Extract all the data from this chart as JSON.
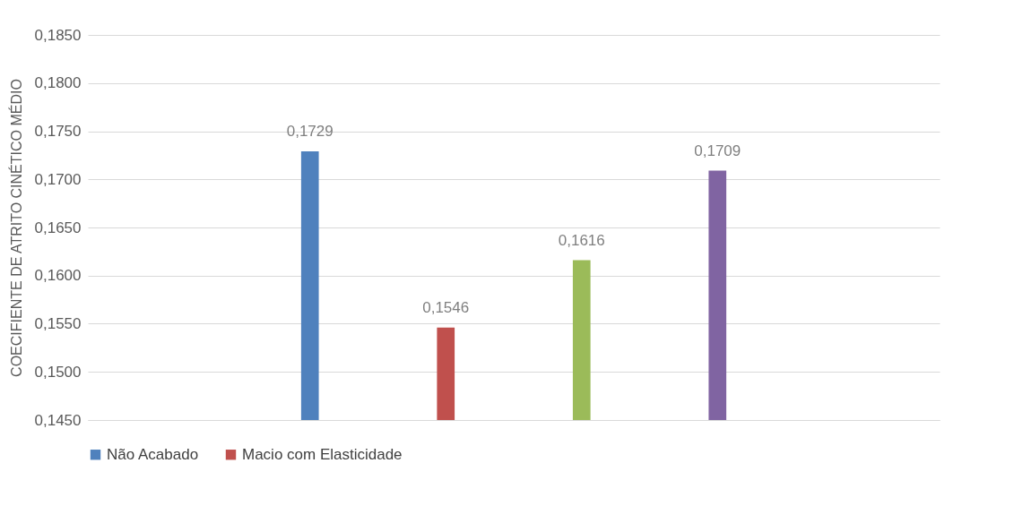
{
  "chart_data": {
    "type": "bar",
    "ylabel": "COECIFIENTE DE ATRITO CINÉTICO MÉDIO",
    "categories": [
      null
    ],
    "series": [
      {
        "name": "Não Acabado",
        "color": "#4f81bd",
        "values": [
          0.1729
        ],
        "value_labels": [
          "0,1729"
        ]
      },
      {
        "name": "Macio com Elasticidade",
        "color": "#c0504d",
        "values": [
          0.1546
        ],
        "value_labels": [
          "0,1546"
        ]
      },
      {
        "color": "#9bbb59",
        "values": [
          0.1616
        ],
        "value_labels": [
          "0,1616"
        ]
      },
      {
        "color": "#8064a2",
        "values": [
          0.1709
        ],
        "value_labels": [
          "0,1709"
        ]
      }
    ],
    "ylim": [
      0.145,
      0.185
    ],
    "yticks": [
      {
        "value": 0.145,
        "label": "0,1450"
      },
      {
        "value": 0.15,
        "label": "0,1500"
      },
      {
        "value": 0.155,
        "label": "0,1550"
      },
      {
        "value": 0.16,
        "label": "0,1600"
      },
      {
        "value": 0.165,
        "label": "0,1650"
      },
      {
        "value": 0.17,
        "label": "0,1700"
      },
      {
        "value": 0.175,
        "label": "0,1750"
      },
      {
        "value": 0.18,
        "label": "0,1800"
      },
      {
        "value": 0.185,
        "label": "0,1850"
      }
    ],
    "grid": "y",
    "legend": "bottom"
  }
}
